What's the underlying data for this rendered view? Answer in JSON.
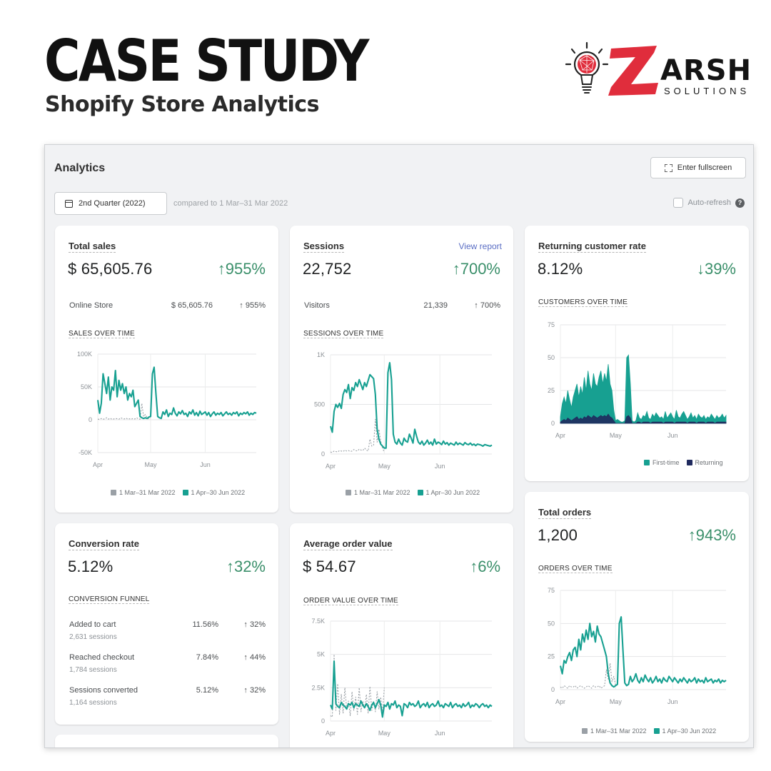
{
  "hero": {
    "title": "CASE STUDY",
    "subtitle": "Shopify Store Analytics"
  },
  "logo": {
    "name": "ARSH",
    "tagline": "SOLUTIONS",
    "icon": "lightbulb-icon",
    "brand_color": "#e02d3c"
  },
  "toolbar": {
    "title": "Analytics",
    "fullscreen_label": "Enter fullscreen",
    "date_label": "2nd Quarter (2022)",
    "compare_text": "compared to 1 Mar–31 Mar 2022",
    "autorefresh_label": "Auto-refresh",
    "help_glyph": "?"
  },
  "colors": {
    "accent": "#17a091",
    "positive": "#3a8f6a",
    "returning": "#1f2a5e",
    "compare": "#9aa0a6"
  },
  "cards": {
    "total_sales": {
      "title": "Total sales",
      "value": "$ 65,605.76",
      "change": "↑955%",
      "breakdown": {
        "label": "Online Store",
        "value": "$ 65,605.76",
        "change": "↑ 955%"
      },
      "chart_label": "SALES OVER TIME",
      "legend_prev": "1 Mar–31 Mar 2022",
      "legend_curr": "1 Apr–30 Jun 2022"
    },
    "sessions": {
      "title": "Sessions",
      "link": "View report",
      "value": "22,752",
      "change": "↑700%",
      "breakdown": {
        "label": "Visitors",
        "value": "21,339",
        "change": "↑ 700%"
      },
      "chart_label": "SESSIONS OVER TIME",
      "legend_prev": "1 Mar–31 Mar 2022",
      "legend_curr": "1 Apr–30 Jun 2022"
    },
    "returning": {
      "title": "Returning customer rate",
      "value": "8.12%",
      "change": "↓39%",
      "chart_label": "CUSTOMERS OVER TIME",
      "legend_first": "First-time",
      "legend_returning": "Returning"
    },
    "conversion": {
      "title": "Conversion rate",
      "value": "5.12%",
      "change": "↑32%",
      "funnel_label": "CONVERSION FUNNEL",
      "funnel": [
        {
          "name": "Added to cart",
          "sessions": "2,631 sessions",
          "value": "11.56%",
          "change": "↑ 32%"
        },
        {
          "name": "Reached checkout",
          "sessions": "1,784 sessions",
          "value": "7.84%",
          "change": "↑ 44%"
        },
        {
          "name": "Sessions converted",
          "sessions": "1,164 sessions",
          "value": "5.12%",
          "change": "↑ 32%"
        }
      ]
    },
    "aov": {
      "title": "Average order value",
      "value": "$ 54.67",
      "change": "↑6%",
      "chart_label": "ORDER VALUE OVER TIME"
    },
    "orders": {
      "title": "Total orders",
      "value": "1,200",
      "change": "↑943%",
      "chart_label": "ORDERS OVER TIME",
      "legend_prev": "1 Mar–31 Mar 2022",
      "legend_curr": "1 Apr–30 Jun 2022"
    }
  },
  "chart_data": [
    {
      "id": "sales",
      "type": "line",
      "ylim": [
        -50000,
        100000
      ],
      "yticks": [
        100000,
        50000,
        0,
        -50000
      ],
      "ytick_labels": [
        "100K",
        "50K",
        "0",
        "-50K"
      ],
      "xtick_labels": [
        "Apr",
        "May",
        "Jun"
      ],
      "xtick_at": [
        0,
        30,
        61
      ],
      "series": [
        {
          "name": "1 Apr–30 Jun 2022",
          "role": "current",
          "values": [
            30000,
            10000,
            25000,
            70000,
            55000,
            40000,
            65000,
            30000,
            50000,
            45000,
            75000,
            35000,
            60000,
            45000,
            55000,
            40000,
            50000,
            30000,
            40000,
            35000,
            45000,
            20000,
            25000,
            30000,
            5000,
            3000,
            2000,
            3000,
            2000,
            4000,
            5000,
            70000,
            80000,
            40000,
            5000,
            3000,
            2000,
            12000,
            8000,
            15000,
            5000,
            10000,
            8000,
            18000,
            10000,
            6000,
            12000,
            9000,
            14000,
            8000,
            10000,
            5000,
            12000,
            9000,
            15000,
            7000,
            11000,
            6000,
            13000,
            8000,
            10000,
            12000,
            7000,
            11000,
            5000,
            9000,
            12000,
            7000,
            10000,
            8000,
            11000,
            6000,
            9000,
            12000,
            8000,
            10000,
            7000,
            11000,
            9000,
            12000,
            6000,
            10000,
            8000,
            11000,
            9000,
            12000,
            7000,
            10000,
            8000,
            11000,
            10000
          ]
        },
        {
          "name": "1 Mar–31 Mar 2022",
          "role": "previous",
          "values": [
            1000,
            500,
            2000,
            800,
            1500,
            3000,
            1000,
            2500,
            800,
            1200,
            2000,
            1500,
            900,
            3000,
            1800,
            1200,
            2600,
            1000,
            1500,
            900,
            2000,
            1200,
            3000,
            1500,
            900,
            25000,
            5000,
            8000,
            3000,
            1500,
            2000
          ]
        }
      ]
    },
    {
      "id": "sessions",
      "type": "line",
      "ylim": [
        0,
        1000
      ],
      "yticks": [
        1000,
        500,
        0
      ],
      "ytick_labels": [
        "1K",
        "500",
        "0"
      ],
      "xtick_labels": [
        "Apr",
        "May",
        "Jun"
      ],
      "xtick_at": [
        0,
        30,
        61
      ],
      "series": [
        {
          "name": "1 Apr–30 Jun 2022",
          "role": "current",
          "values": [
            280,
            220,
            430,
            500,
            470,
            510,
            460,
            600,
            650,
            620,
            700,
            560,
            670,
            640,
            720,
            680,
            750,
            700,
            650,
            720,
            680,
            740,
            800,
            780,
            760,
            600,
            250,
            150,
            100,
            80,
            60,
            60,
            820,
            920,
            750,
            200,
            120,
            100,
            150,
            110,
            90,
            160,
            130,
            120,
            200,
            160,
            110,
            250,
            180,
            120,
            100,
            130,
            90,
            110,
            140,
            100,
            120,
            90,
            150,
            100,
            120,
            110,
            95,
            130,
            100,
            115,
            90,
            110,
            100,
            90,
            120,
            95,
            110,
            100,
            90,
            115,
            100,
            95,
            110,
            90,
            100,
            85,
            100,
            95,
            90,
            80,
            95,
            90,
            85,
            80,
            90
          ]
        },
        {
          "name": "1 Mar–31 Mar 2022",
          "role": "previous",
          "values": [
            20,
            15,
            30,
            25,
            20,
            35,
            30,
            25,
            40,
            30,
            35,
            25,
            30,
            45,
            35,
            30,
            50,
            40,
            35,
            60,
            40,
            30,
            150,
            80,
            90,
            350,
            120,
            250,
            130,
            60,
            20
          ]
        }
      ]
    },
    {
      "id": "customers",
      "type": "area",
      "ylim": [
        0,
        75
      ],
      "yticks": [
        75,
        50,
        25,
        0
      ],
      "ytick_labels": [
        "75",
        "50",
        "25",
        "0"
      ],
      "xtick_labels": [
        "Apr",
        "May",
        "Jun"
      ],
      "xtick_at": [
        0,
        30,
        61
      ],
      "series": [
        {
          "name": "First-time",
          "role": "first",
          "values": [
            5,
            15,
            20,
            15,
            25,
            18,
            12,
            20,
            25,
            30,
            20,
            28,
            22,
            35,
            25,
            40,
            30,
            25,
            38,
            30,
            28,
            35,
            40,
            30,
            38,
            32,
            45,
            30,
            25,
            10,
            2,
            3,
            2,
            1,
            1,
            2,
            50,
            52,
            30,
            2,
            1,
            2,
            8,
            4,
            3,
            6,
            5,
            9,
            4,
            3,
            7,
            5,
            8,
            6,
            4,
            5,
            3,
            9,
            4,
            6,
            8,
            5,
            3,
            10,
            5,
            4,
            7,
            9,
            6,
            3,
            5,
            8,
            4,
            6,
            3,
            7,
            5,
            4,
            6,
            3,
            5,
            4,
            7,
            5,
            3,
            6,
            4,
            5,
            7,
            4,
            6
          ]
        },
        {
          "name": "Returning",
          "role": "returning",
          "values": [
            1,
            2,
            3,
            2,
            4,
            3,
            2,
            3,
            4,
            5,
            3,
            4,
            3,
            5,
            4,
            6,
            5,
            4,
            6,
            5,
            4,
            5,
            6,
            5,
            6,
            5,
            7,
            5,
            4,
            2,
            0,
            0,
            0,
            0,
            0,
            0,
            5,
            6,
            4,
            0,
            0,
            0,
            1,
            1,
            0,
            1,
            1,
            1,
            1,
            0,
            1,
            1,
            1,
            1,
            1,
            1,
            0,
            1,
            1,
            1,
            1,
            1,
            0,
            1,
            1,
            1,
            1,
            1,
            1,
            0,
            1,
            1,
            1,
            1,
            0,
            1,
            1,
            1,
            1,
            0,
            1,
            1,
            1,
            1,
            0,
            1,
            1,
            1,
            1,
            1,
            1
          ]
        }
      ]
    },
    {
      "id": "aov",
      "type": "line",
      "ylim": [
        0,
        7500
      ],
      "yticks": [
        7500,
        5000,
        2500,
        0
      ],
      "ytick_labels": [
        "7.5K",
        "5K",
        "2.5K",
        "0"
      ],
      "xtick_labels": [
        "Apr",
        "May",
        "Jun"
      ],
      "xtick_at": [
        0,
        30,
        61
      ],
      "series": [
        {
          "name": "1 Apr–30 Jun 2022",
          "role": "current",
          "values": [
            1200,
            900,
            4500,
            1300,
            1100,
            1000,
            1400,
            1200,
            1100,
            900,
            1300,
            1200,
            1400,
            1000,
            1300,
            1200,
            1100,
            1500,
            1200,
            1000,
            1300,
            1100,
            800,
            1200,
            1400,
            1000,
            1300,
            1600,
            1200,
            300,
            1200,
            1100,
            1400,
            900,
            1300,
            1200,
            1500,
            1000,
            1200,
            1100,
            400,
            1300,
            1200,
            1000,
            1400,
            1200,
            1300,
            1100,
            1200,
            1500,
            1000,
            1200,
            1300,
            1100,
            1400,
            1000,
            1200,
            1300,
            1100,
            1200,
            1500,
            1100,
            1200,
            1000,
            1300,
            1200,
            1100,
            1400,
            1000,
            1200,
            1300,
            1100,
            1200,
            1000,
            1300,
            1100,
            1200,
            1400,
            1000,
            1200,
            1100,
            1300,
            1200,
            1000,
            1200,
            1300,
            1100,
            1200,
            1000,
            1200,
            1100
          ]
        },
        {
          "name": "1 Mar–31 Mar 2022",
          "role": "previous",
          "values": [
            400,
            300,
            5000,
            800,
            2800,
            500,
            2000,
            600,
            2500,
            900,
            1500,
            400,
            2200,
            800,
            1800,
            500,
            2500,
            700,
            1500,
            900,
            2000,
            600,
            2600,
            800,
            1500,
            700,
            2200,
            900,
            1800,
            600,
            2500
          ]
        }
      ]
    },
    {
      "id": "orders",
      "type": "line",
      "ylim": [
        0,
        75
      ],
      "yticks": [
        75,
        50,
        25,
        0
      ],
      "ytick_labels": [
        "75",
        "50",
        "25",
        "0"
      ],
      "xtick_labels": [
        "Apr",
        "May",
        "Jun"
      ],
      "xtick_at": [
        0,
        30,
        61
      ],
      "series": [
        {
          "name": "1 Apr–30 Jun 2022",
          "role": "current",
          "values": [
            18,
            12,
            22,
            20,
            25,
            28,
            22,
            30,
            32,
            25,
            38,
            30,
            42,
            36,
            45,
            38,
            50,
            40,
            44,
            36,
            48,
            42,
            40,
            35,
            30,
            25,
            12,
            5,
            3,
            2,
            3,
            4,
            50,
            55,
            30,
            5,
            3,
            4,
            10,
            6,
            8,
            12,
            7,
            5,
            9,
            6,
            11,
            8,
            6,
            9,
            5,
            7,
            10,
            6,
            8,
            5,
            9,
            7,
            6,
            10,
            8,
            6,
            9,
            7,
            5,
            8,
            6,
            9,
            7,
            5,
            8,
            6,
            7,
            9,
            5,
            8,
            6,
            7,
            5,
            9,
            6,
            7,
            8,
            5,
            7,
            6,
            8,
            5,
            7,
            6,
            7
          ]
        },
        {
          "name": "1 Mar–31 Mar 2022",
          "role": "previous",
          "values": [
            2,
            1,
            3,
            2,
            1,
            3,
            2,
            2,
            3,
            1,
            2,
            3,
            2,
            1,
            2,
            3,
            2,
            1,
            3,
            2,
            2,
            3,
            1,
            2,
            3,
            15,
            8,
            20,
            6,
            10,
            3
          ]
        }
      ]
    }
  ]
}
